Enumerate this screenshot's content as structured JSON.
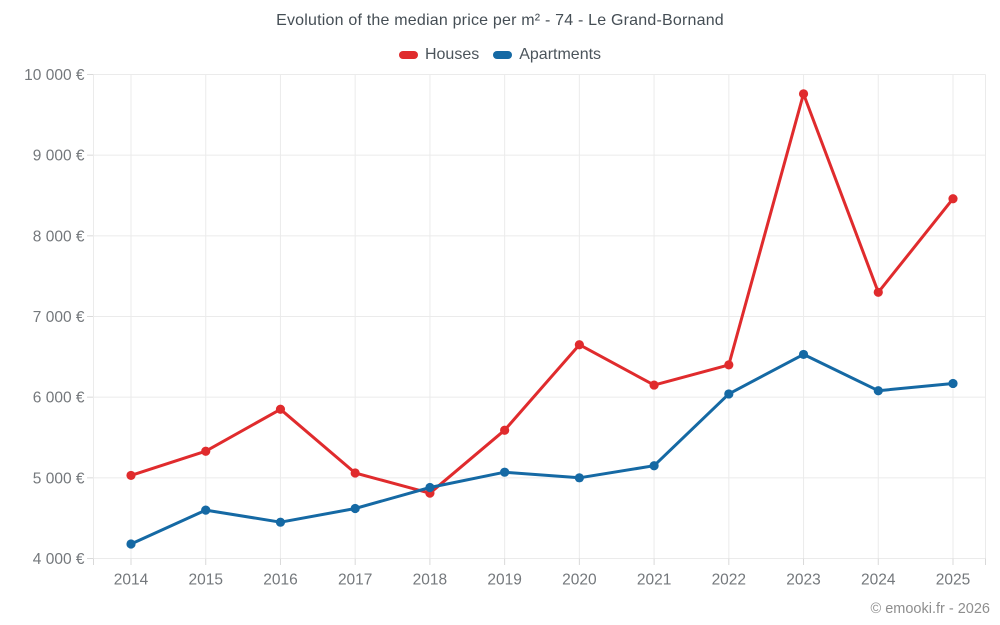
{
  "title": "Evolution of the median price per m² - 74 - Le Grand-Bornand",
  "footer": "© emooki.fr - 2026",
  "colors": {
    "houses": "#e02b2d",
    "apartments": "#1569a4",
    "grid": "#ebebeb",
    "tick": "#d9d9d9",
    "axis_text": "#74787c",
    "title_text": "#454e55",
    "footer_text": "#8e8e8e"
  },
  "chart_data": {
    "type": "line",
    "x": [
      2014,
      2015,
      2016,
      2017,
      2018,
      2019,
      2020,
      2021,
      2022,
      2023,
      2024,
      2025
    ],
    "series": [
      {
        "name": "Houses",
        "color_key": "houses",
        "values": [
          5030,
          5330,
          5850,
          5060,
          4810,
          5590,
          6650,
          6150,
          6400,
          9760,
          7300,
          8460
        ]
      },
      {
        "name": "Apartments",
        "color_key": "apartments",
        "values": [
          4180,
          4600,
          4450,
          4620,
          4880,
          5070,
          5000,
          5150,
          6040,
          6530,
          6080,
          6170
        ]
      }
    ],
    "yticks": [
      4000,
      5000,
      6000,
      7000,
      8000,
      9000,
      10000
    ],
    "ytick_labels": [
      "4 000 €",
      "5 000 €",
      "6 000 €",
      "7 000 €",
      "8 000 €",
      "9 000 €",
      "10 000 €"
    ],
    "ylim": [
      4000,
      10000
    ],
    "xtick_labels": [
      "2014",
      "2015",
      "2016",
      "2017",
      "2018",
      "2019",
      "2020",
      "2021",
      "2022",
      "2023",
      "2024",
      "2025"
    ],
    "grid": true,
    "legend_position": "top",
    "title": "Evolution of the median price per m² - 74 - Le Grand-Bornand"
  }
}
